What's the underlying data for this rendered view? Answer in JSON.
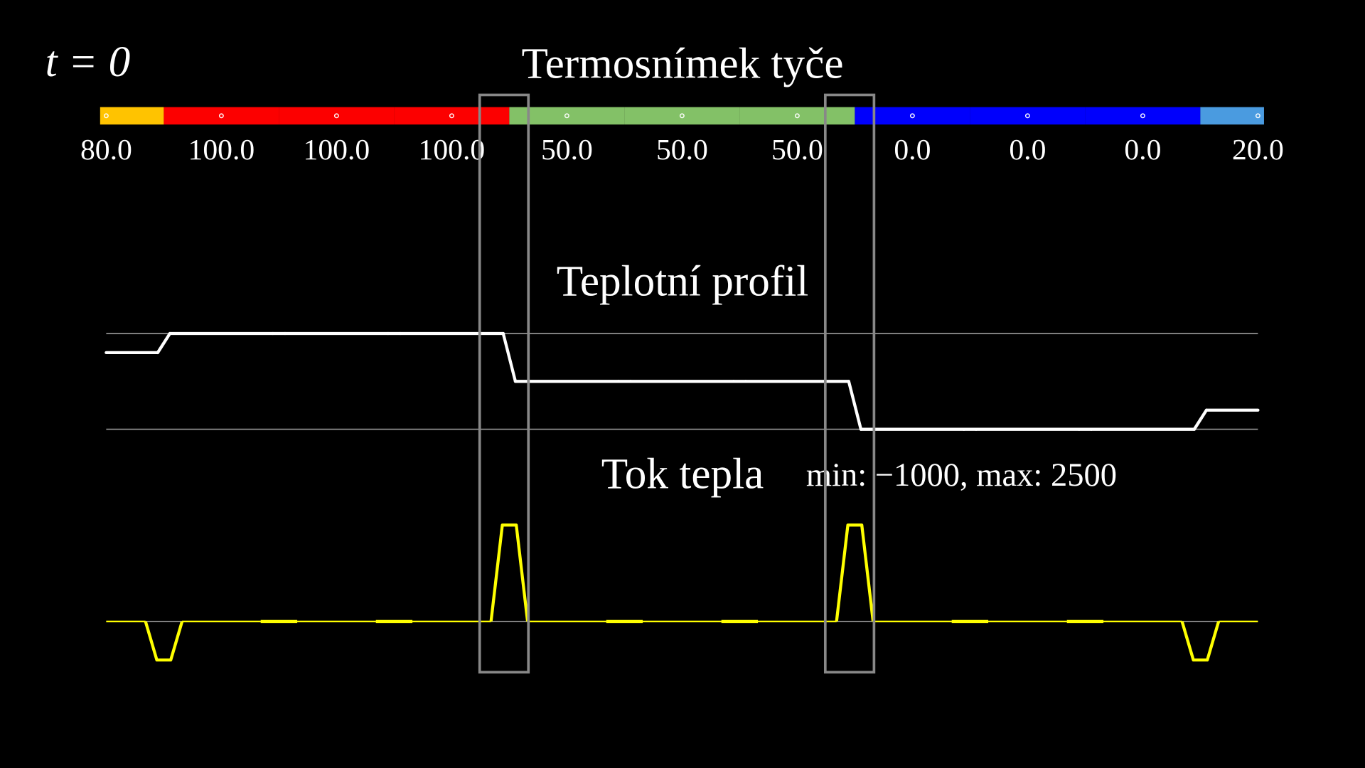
{
  "time_label": "t = 0",
  "chart_data": [
    {
      "type": "strip",
      "title": "Termosnímek tyče",
      "values": [
        80,
        100,
        100,
        100,
        50,
        50,
        50,
        0,
        0,
        0,
        20
      ],
      "value_labels": [
        "80.0",
        "100.0",
        "100.0",
        "100.0",
        "50.0",
        "50.0",
        "50.0",
        "0.0",
        "0.0",
        "0.0",
        "20.0"
      ],
      "colors": [
        "#ffc300",
        "#fc0000",
        "#fc0000",
        "#fc0000",
        "#83c167",
        "#83c167",
        "#83c167",
        "#0000fc",
        "#0000fc",
        "#0000fc",
        "#4a9be0"
      ]
    },
    {
      "type": "profile",
      "title": "Teplotní profil",
      "values": [
        80,
        100,
        100,
        100,
        50,
        50,
        50,
        0,
        0,
        0,
        20
      ],
      "ylim": [
        0,
        100
      ],
      "color": "#ffffff"
    },
    {
      "type": "flux",
      "title": "Tok tepla",
      "annotation": "min: −1000, max: 2500",
      "values": [
        -1000,
        0,
        0,
        2500,
        0,
        0,
        2500,
        0,
        0,
        -1000
      ],
      "ylim": [
        -1000,
        2500
      ],
      "color": "#ffff00"
    }
  ]
}
